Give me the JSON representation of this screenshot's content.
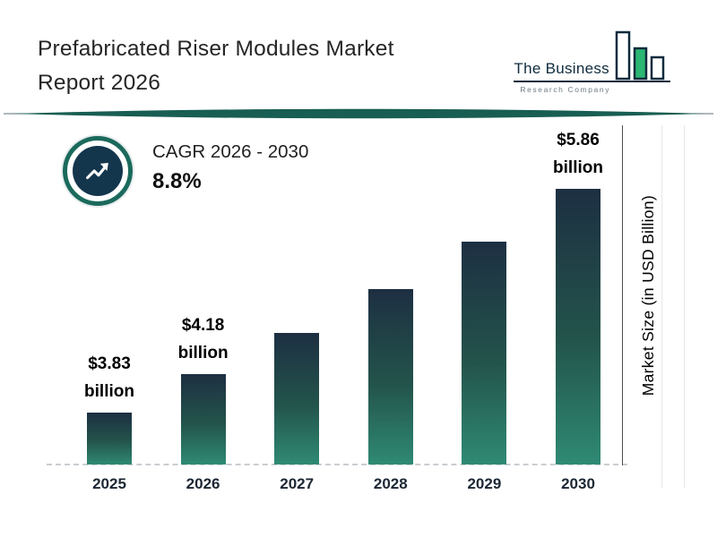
{
  "header": {
    "title_line1": "Prefabricated Riser Modules Market",
    "title_line2": "Report 2026"
  },
  "logo": {
    "name": "The Business",
    "tagline": "Research Company"
  },
  "cagr": {
    "label": "CAGR 2026 - 2030",
    "value": "8.8%"
  },
  "chart_data": {
    "type": "bar",
    "title": "Prefabricated Riser Modules Market Report 2026",
    "categories": [
      "2025",
      "2026",
      "2027",
      "2028",
      "2029",
      "2030"
    ],
    "values": [
      3.83,
      4.18,
      4.55,
      4.95,
      5.38,
      5.86
    ],
    "bar_labels": [
      "$3.83 billion",
      "$4.18 billion",
      "",
      "",
      "",
      "$5.86 billion"
    ],
    "unit": "USD Billion",
    "xlabel": "",
    "ylabel": "Market Size (in USD Billion)",
    "legend": "none",
    "grid": "dashed-baseline"
  },
  "colors": {
    "bar_gradient_top": "#1d2f42",
    "bar_gradient_bottom": "#2f8a74",
    "accent_teal": "#185e52",
    "logo_green": "#2bb673",
    "navy": "#14364d"
  }
}
